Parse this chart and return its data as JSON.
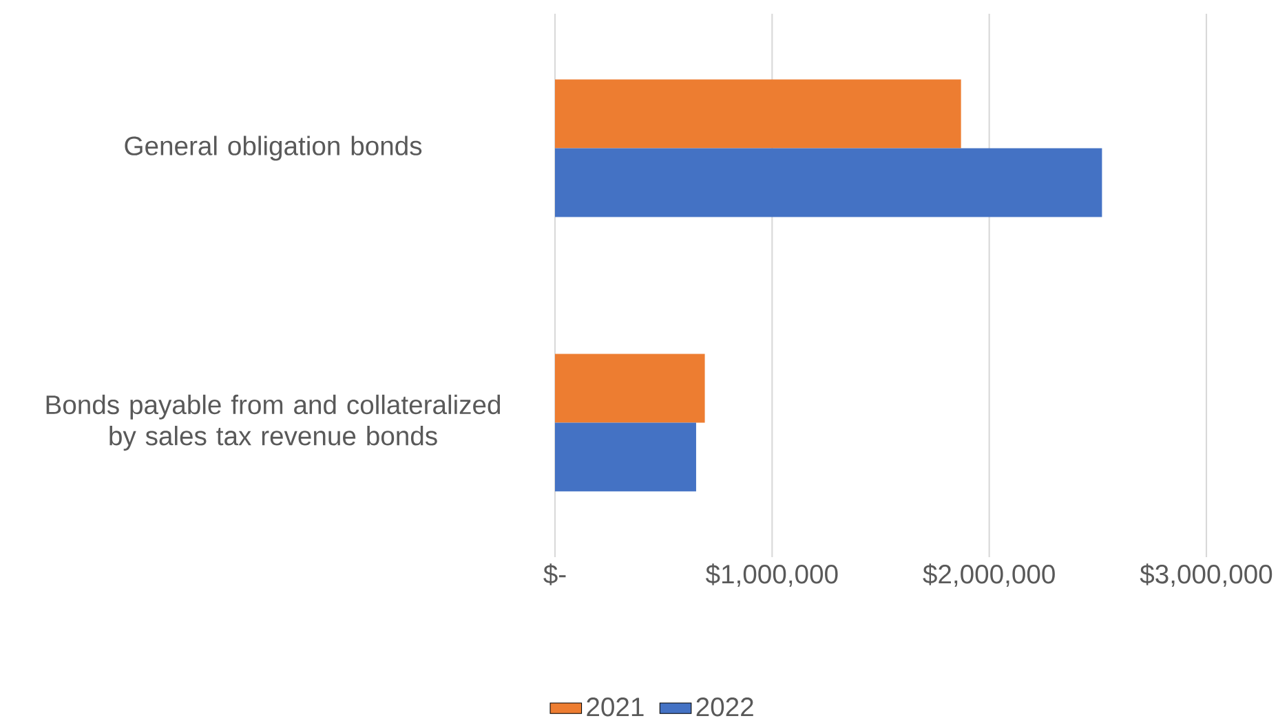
{
  "chart_data": {
    "type": "bar",
    "orientation": "horizontal",
    "categories": [
      "General obligation bonds",
      "Bonds payable from and collateralized by sales tax revenue bonds"
    ],
    "series": [
      {
        "name": "2021",
        "color": "#ed7d31",
        "values": [
          1870000,
          690000
        ]
      },
      {
        "name": "2022",
        "color": "#4472c4",
        "values": [
          2520000,
          650000
        ]
      }
    ],
    "xlim": [
      0,
      3000000
    ],
    "xticks": [
      {
        "value": 0,
        "label": "$-"
      },
      {
        "value": 1000000,
        "label": "$1,000,000"
      },
      {
        "value": 2000000,
        "label": "$2,000,000"
      },
      {
        "value": 3000000,
        "label": "$3,000,000"
      }
    ],
    "grid": "x",
    "legend": "bottom"
  }
}
